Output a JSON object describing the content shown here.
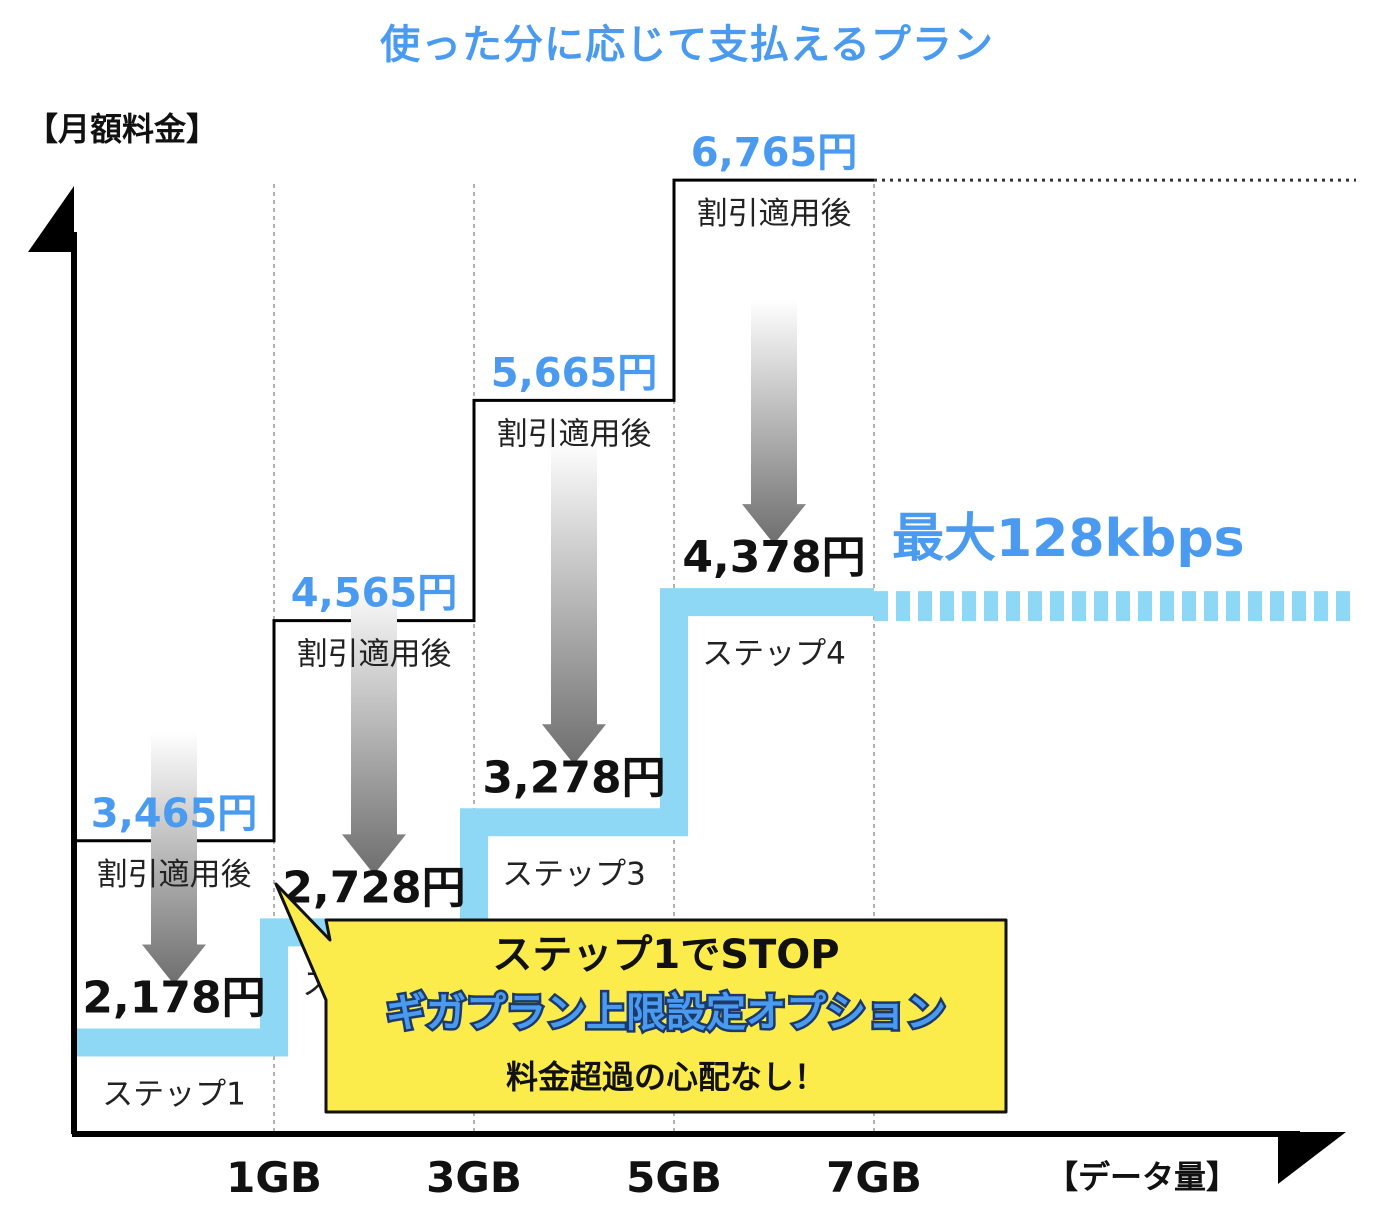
{
  "chart_data": {
    "type": "step",
    "title": "使った分に応じて支払えるプラン",
    "ylabel": "【月額料金】",
    "xlabel": "【データ量】",
    "x_ticks": [
      "1GB",
      "3GB",
      "5GB",
      "7GB"
    ],
    "steps": [
      {
        "name": "ステップ1",
        "price_before": "3,465円",
        "discount_label": "割引適用後",
        "price_after": "2,178円",
        "before_value": 3465,
        "after_value": 2178
      },
      {
        "name": "ステップ2",
        "price_before": "4,565円",
        "discount_label": "割引適用後",
        "price_after": "2,728円",
        "before_value": 4565,
        "after_value": 2728
      },
      {
        "name": "ステップ3",
        "price_before": "5,665円",
        "discount_label": "割引適用後",
        "price_after": "3,278円",
        "before_value": 5665,
        "after_value": 3278
      },
      {
        "name": "ステップ4",
        "price_before": "6,765円",
        "discount_label": "割引適用後",
        "price_after": "4,378円",
        "before_value": 6765,
        "after_value": 4378
      }
    ],
    "speed_limit_label": "最大128kbps",
    "callout": {
      "line1": "ステップ1でSTOP",
      "line2": "ギガプラン上限設定オプション",
      "line3": "料金超過の心配なし！"
    },
    "colors": {
      "accent_blue": "#4a9bf0",
      "step_line": "#8fd8f5",
      "callout_fill": "#fbec4b",
      "axis": "#000000"
    }
  }
}
